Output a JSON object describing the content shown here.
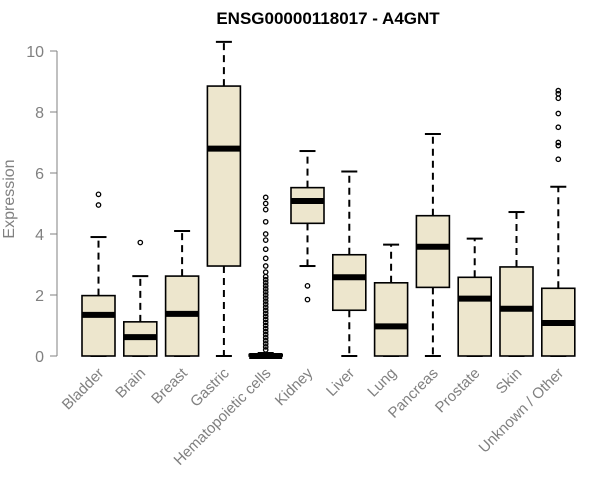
{
  "chart_data": {
    "type": "boxplot",
    "title": "ENSG00000118017 - A4GNT",
    "xlabel": "",
    "ylabel": "Expression",
    "ylim": [
      0,
      10.5
    ],
    "yticks": [
      0,
      2,
      4,
      6,
      8,
      10
    ],
    "colors": {
      "box_fill": "#ede6cd",
      "box_stroke": "#000000",
      "axis": "#808080"
    },
    "categories": [
      "Bladder",
      "Brain",
      "Breast",
      "Gastric",
      "Hematopoietic cells",
      "Kidney",
      "Liver",
      "Lung",
      "Pancreas",
      "Prostate",
      "Skin",
      "Unknown / Other"
    ],
    "boxes": [
      {
        "name": "Bladder",
        "whisker_low": 0,
        "q1": 0,
        "median": 1.35,
        "q3": 1.98,
        "whisker_high": 3.9,
        "outliers": [
          4.95,
          5.3
        ]
      },
      {
        "name": "Brain",
        "whisker_low": 0,
        "q1": 0,
        "median": 0.62,
        "q3": 1.12,
        "whisker_high": 2.62,
        "outliers": [
          3.72
        ]
      },
      {
        "name": "Breast",
        "whisker_low": 0,
        "q1": 0,
        "median": 1.38,
        "q3": 2.62,
        "whisker_high": 4.1,
        "outliers": []
      },
      {
        "name": "Gastric",
        "whisker_low": 0,
        "q1": 2.95,
        "median": 6.8,
        "q3": 8.85,
        "whisker_high": 10.3,
        "outliers": []
      },
      {
        "name": "Hematopoietic cells",
        "whisker_low": 0,
        "q1": 0,
        "median": 0,
        "q3": 0.05,
        "whisker_high": 0.1,
        "outliers": [
          0.2,
          0.3,
          0.4,
          0.5,
          0.6,
          0.7,
          0.8,
          0.9,
          1.0,
          1.1,
          1.2,
          1.3,
          1.4,
          1.5,
          1.6,
          1.7,
          1.8,
          1.9,
          2.0,
          2.1,
          2.2,
          2.3,
          2.4,
          2.5,
          2.6,
          2.75,
          2.95,
          3.2,
          3.5,
          3.8,
          4.0,
          4.4,
          4.8,
          5.0,
          5.2
        ]
      },
      {
        "name": "Kidney",
        "whisker_low": 2.95,
        "q1": 4.35,
        "median": 5.08,
        "q3": 5.52,
        "whisker_high": 6.72,
        "outliers": [
          1.85,
          2.3
        ]
      },
      {
        "name": "Liver",
        "whisker_low": 0,
        "q1": 1.5,
        "median": 2.58,
        "q3": 3.32,
        "whisker_high": 6.05,
        "outliers": []
      },
      {
        "name": "Lung",
        "whisker_low": 0,
        "q1": 0,
        "median": 0.97,
        "q3": 2.4,
        "whisker_high": 3.65,
        "outliers": []
      },
      {
        "name": "Pancreas",
        "whisker_low": 0,
        "q1": 2.25,
        "median": 3.58,
        "q3": 4.6,
        "whisker_high": 7.28,
        "outliers": []
      },
      {
        "name": "Prostate",
        "whisker_low": 0,
        "q1": 0,
        "median": 1.88,
        "q3": 2.58,
        "whisker_high": 3.85,
        "outliers": []
      },
      {
        "name": "Skin",
        "whisker_low": 0,
        "q1": 0,
        "median": 1.55,
        "q3": 2.92,
        "whisker_high": 4.72,
        "outliers": []
      },
      {
        "name": "Unknown / Other",
        "whisker_low": 0,
        "q1": 0,
        "median": 1.08,
        "q3": 2.22,
        "whisker_high": 5.55,
        "outliers": [
          6.45,
          6.9,
          7.0,
          7.5,
          7.95,
          8.45,
          8.6,
          8.7
        ]
      }
    ]
  }
}
